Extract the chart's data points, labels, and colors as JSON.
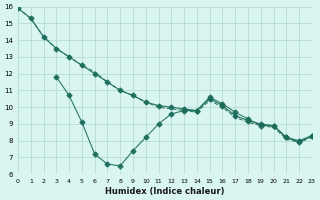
{
  "xlabel": "Humidex (Indice chaleur)",
  "ylabel": "",
  "bg_color": "#d9f5f0",
  "grid_color": "#b0d8d0",
  "line_color": "#1a6b5a",
  "xlim": [
    0,
    23
  ],
  "ylim": [
    6,
    16
  ],
  "yticks": [
    6,
    7,
    8,
    9,
    10,
    11,
    12,
    13,
    14,
    15,
    16
  ],
  "xticks": [
    0,
    1,
    2,
    3,
    4,
    5,
    6,
    7,
    8,
    9,
    10,
    11,
    12,
    13,
    14,
    15,
    16,
    17,
    18,
    19,
    20,
    21,
    22,
    23
  ],
  "series": [
    {
      "x": [
        0,
        1,
        2,
        3,
        4,
        5,
        6,
        7,
        8,
        9,
        10,
        11,
        12,
        13,
        14,
        15,
        16,
        17,
        18,
        19,
        20,
        21,
        22,
        23
      ],
      "y": [
        15.9,
        15.3,
        14.2,
        13.5,
        13.0,
        12.5,
        12.0,
        11.5,
        11.0,
        10.7,
        10.3,
        10.1,
        10.0,
        9.9,
        9.8,
        10.5,
        10.1,
        9.5,
        9.2,
        9.0,
        8.9,
        8.2,
        8.0,
        8.3
      ],
      "style": "-",
      "marker": "D",
      "markersize": 2.5
    },
    {
      "x": [
        0,
        1,
        2,
        3,
        4,
        5,
        6,
        7,
        8,
        9,
        10,
        11,
        12,
        13,
        14,
        15,
        16,
        17,
        18,
        19,
        20,
        21,
        22,
        23
      ],
      "y": [
        15.9,
        15.3,
        14.2,
        13.5,
        13.0,
        12.5,
        12.1,
        11.5,
        11.0,
        10.7,
        10.3,
        10.0,
        9.9,
        9.8,
        9.7,
        10.4,
        10.0,
        9.4,
        9.1,
        8.9,
        8.8,
        8.1,
        7.9,
        8.2
      ],
      "style": "--",
      "marker": null,
      "markersize": 0
    },
    {
      "x": [
        3,
        4,
        5,
        6,
        7,
        8,
        9,
        10,
        11,
        12,
        13,
        14,
        15,
        16,
        17,
        18,
        19,
        20,
        21,
        22,
        23
      ],
      "y": [
        11.8,
        10.7,
        9.1,
        7.2,
        6.6,
        6.5,
        7.4,
        8.2,
        9.0,
        9.6,
        9.8,
        9.8,
        10.6,
        10.2,
        9.7,
        9.3,
        8.9,
        8.9,
        8.2,
        7.9,
        8.3
      ],
      "style": "-",
      "marker": "D",
      "markersize": 2.5
    }
  ]
}
